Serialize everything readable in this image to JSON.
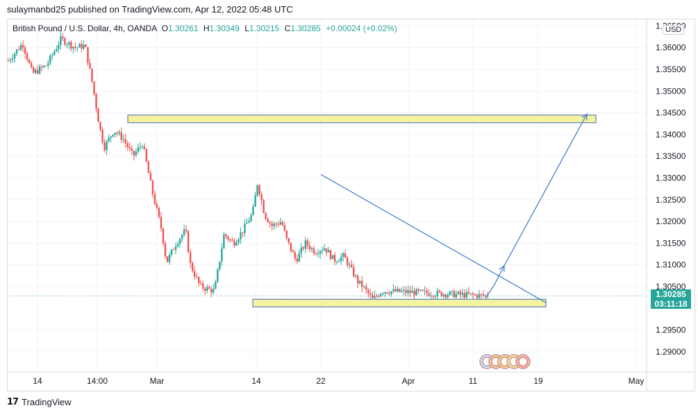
{
  "publisher_line": "sulaymanbd25 published on TradingView.com, Apr 12, 2022 05:48 UTC",
  "legend": {
    "symbol": "British Pound / U.S. Dollar, 4h, OANDA",
    "open_label": "O",
    "open": "1.30261",
    "high_label": "H",
    "high": "1.30349",
    "low_label": "L",
    "low": "1.30215",
    "close_label": "C",
    "close": "1.30285",
    "change": "+0.00024 (+0.02%)"
  },
  "currency_badge": "USD",
  "last_price": {
    "price": "1.30285",
    "countdown": "03:11:18"
  },
  "footer_brand": "TradingView",
  "colors": {
    "up": "#26a69a",
    "down": "#ef5350",
    "zone_fill": "#f5f2a0",
    "zone_border": "#3a66b7",
    "trendline": "#3b78c9"
  },
  "chart_data": {
    "type": "candlestick",
    "y_axis": {
      "ticks": [
        "1.36500",
        "1.36000",
        "1.35500",
        "1.35000",
        "1.34500",
        "1.34000",
        "1.33500",
        "1.33000",
        "1.32500",
        "1.32000",
        "1.31500",
        "1.31000",
        "1.30500",
        "1.29500",
        "1.29000"
      ],
      "range": [
        1.2855,
        1.3665
      ]
    },
    "x_axis": {
      "ticks": [
        "14",
        "14:00",
        "Mar",
        "14",
        "22",
        "Apr",
        "11",
        "19",
        "May"
      ]
    },
    "price_path": [
      [
        0,
        1.357
      ],
      [
        0.03,
        1.361
      ],
      [
        0.05,
        1.354
      ],
      [
        0.08,
        1.356
      ],
      [
        0.11,
        1.362
      ],
      [
        0.14,
        1.36
      ],
      [
        0.16,
        1.3605
      ],
      [
        0.175,
        1.352
      ],
      [
        0.19,
        1.342
      ],
      [
        0.2,
        1.337
      ],
      [
        0.22,
        1.341
      ],
      [
        0.24,
        1.339
      ],
      [
        0.26,
        1.335
      ],
      [
        0.28,
        1.338
      ],
      [
        0.3,
        1.327
      ],
      [
        0.32,
        1.318
      ],
      [
        0.33,
        1.3105
      ],
      [
        0.35,
        1.315
      ],
      [
        0.37,
        1.318
      ],
      [
        0.38,
        1.31
      ],
      [
        0.4,
        1.305
      ],
      [
        0.43,
        1.304
      ],
      [
        0.45,
        1.317
      ],
      [
        0.47,
        1.315
      ],
      [
        0.49,
        1.318
      ],
      [
        0.51,
        1.322
      ],
      [
        0.52,
        1.329
      ],
      [
        0.535,
        1.3215
      ],
      [
        0.55,
        1.319
      ],
      [
        0.57,
        1.32
      ],
      [
        0.58,
        1.316
      ],
      [
        0.6,
        1.311
      ],
      [
        0.62,
        1.315
      ],
      [
        0.64,
        1.313
      ],
      [
        0.66,
        1.314
      ],
      [
        0.68,
        1.311
      ],
      [
        0.7,
        1.312
      ],
      [
        0.72,
        1.308
      ],
      [
        0.73,
        1.306
      ],
      [
        0.74,
        1.305
      ],
      [
        0.76,
        1.302
      ],
      [
        0.78,
        1.304
      ],
      [
        1.0,
        1.30285
      ]
    ],
    "annotations": [
      {
        "kind": "horizontal_zone",
        "from_x": "Feb 24",
        "to_x": "Apr 26",
        "y_low": 1.3432,
        "y_high": 1.344
      },
      {
        "kind": "horizontal_zone",
        "from_x": "Mar 14",
        "to_x": "Apr 20",
        "y_low": 1.3008,
        "y_high": 1.3016
      },
      {
        "kind": "trendline",
        "from": [
          "Mar 22",
          1.3308
        ],
        "to": [
          "Apr 20",
          1.3013
        ]
      },
      {
        "kind": "projection_path",
        "points": [
          [
            "Apr 12",
            1.3025
          ],
          [
            "Apr 14",
            1.3055
          ],
          [
            "Apr 16",
            1.3098
          ],
          [
            "Apr 25",
            1.3447
          ]
        ]
      }
    ],
    "grid": true
  }
}
